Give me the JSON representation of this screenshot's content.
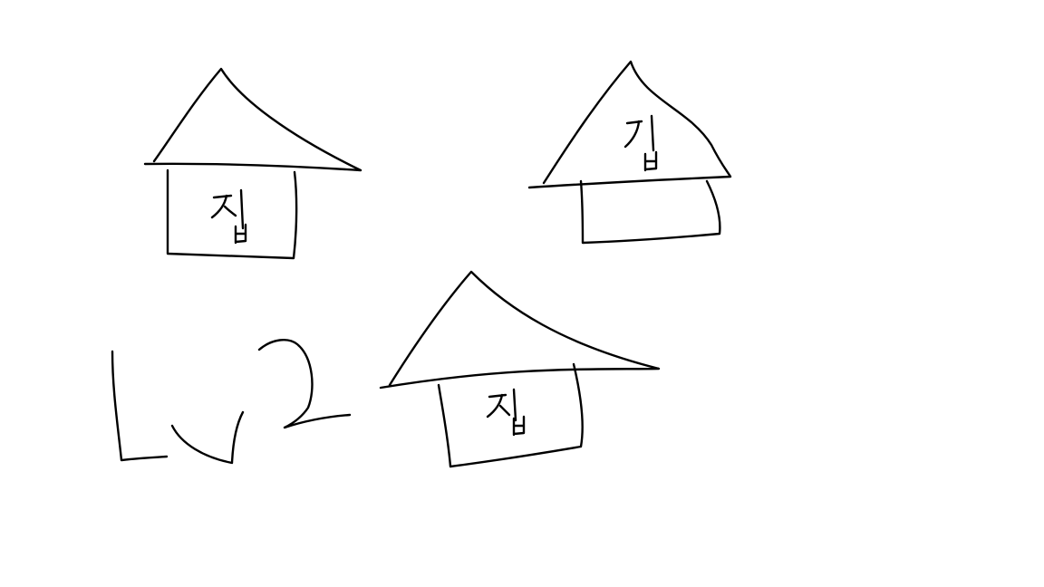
{
  "canvas": {
    "background": "#ffffff",
    "ink_color": "#000000"
  },
  "drawings": [
    {
      "name": "house-1",
      "handwritten_label": "집"
    },
    {
      "name": "house-2",
      "handwritten_label": "집"
    },
    {
      "name": "house-3",
      "handwritten_label": "집"
    },
    {
      "name": "handwritten-mark",
      "handwritten_label": "LV2"
    }
  ]
}
